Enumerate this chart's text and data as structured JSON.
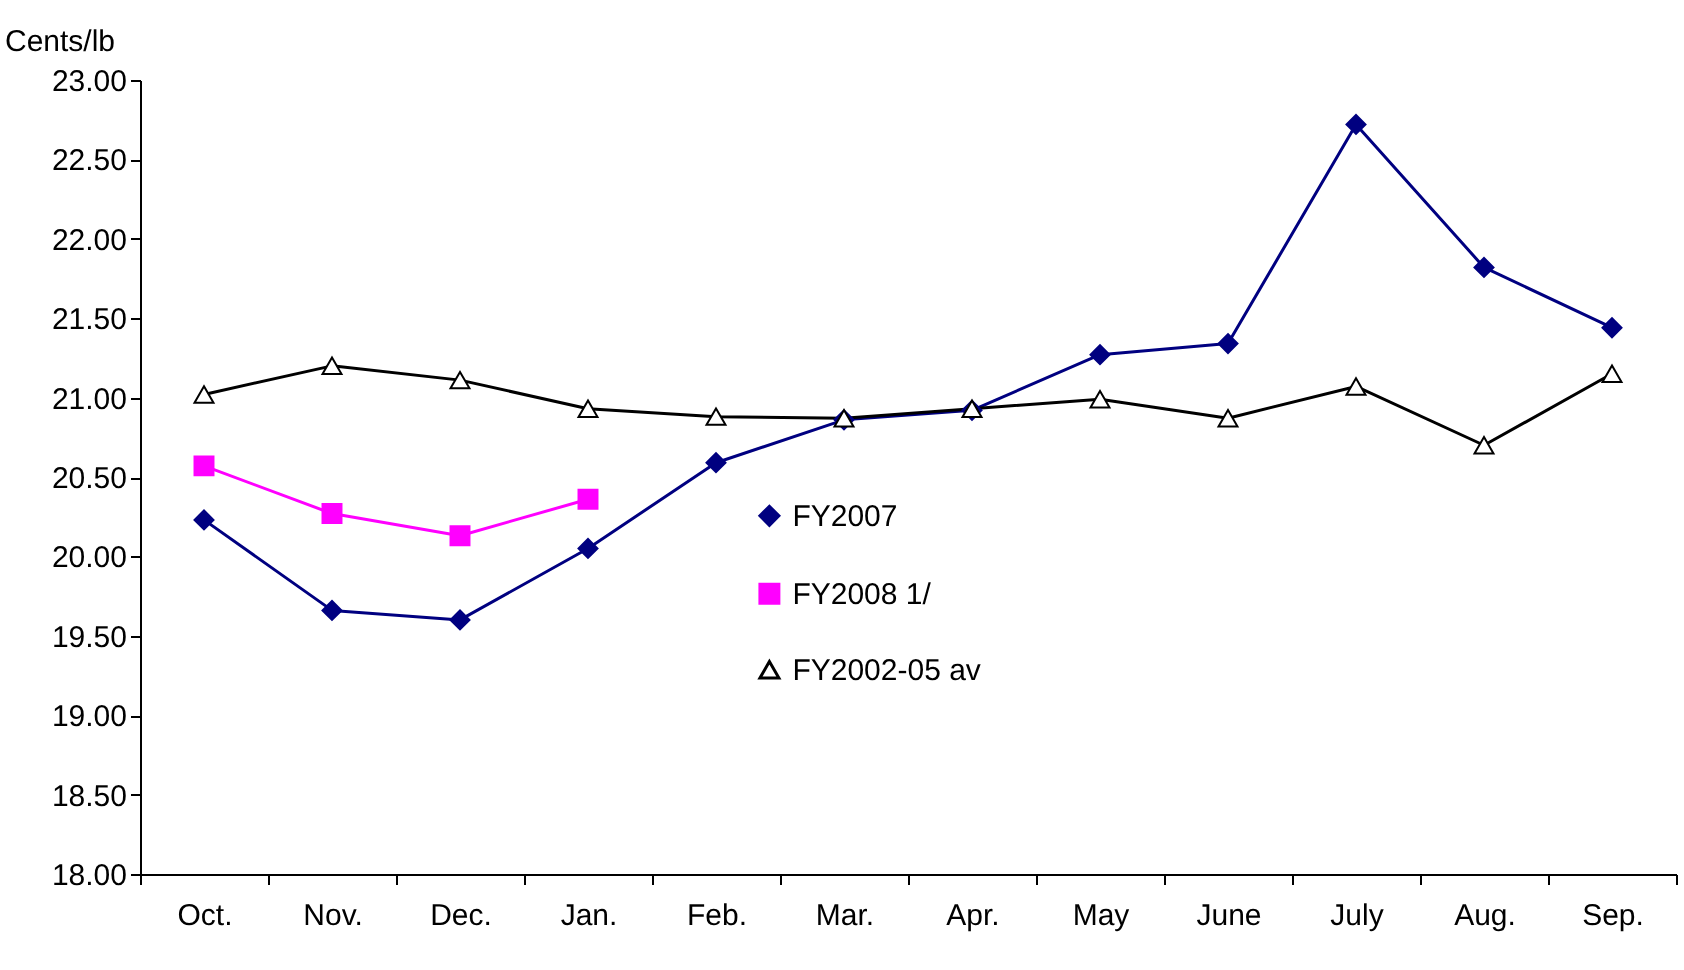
{
  "chart_data": {
    "type": "line",
    "ylabel": "Cents/lb",
    "categories": [
      "Oct.",
      "Nov.",
      "Dec.",
      "Jan.",
      "Feb.",
      "Mar.",
      "Apr.",
      "May",
      "June",
      "July",
      "Aug.",
      "Sep."
    ],
    "series": [
      {
        "name": "FY2007",
        "color": "#000080",
        "marker": "diamond",
        "values": [
          20.23,
          19.66,
          19.6,
          20.05,
          20.59,
          20.86,
          20.92,
          21.27,
          21.34,
          22.72,
          21.82,
          21.44
        ]
      },
      {
        "name": "FY2008 1/",
        "color": "#ff00ff",
        "marker": "square",
        "values": [
          20.57,
          20.27,
          20.13,
          20.36,
          null,
          null,
          null,
          null,
          null,
          null,
          null,
          null
        ]
      },
      {
        "name": "FY2002-05 av",
        "color": "#000000",
        "marker": "triangle",
        "values": [
          21.02,
          21.2,
          21.11,
          20.93,
          20.88,
          20.87,
          20.93,
          20.99,
          20.87,
          21.07,
          20.7,
          21.15
        ]
      }
    ],
    "ylim": [
      18,
      23
    ],
    "yticks": [
      {
        "value": 18,
        "label": "18.00"
      },
      {
        "value": 18.5,
        "label": "18.50"
      },
      {
        "value": 19,
        "label": "19.00"
      },
      {
        "value": 19.5,
        "label": "19.50"
      },
      {
        "value": 20,
        "label": "20.00"
      },
      {
        "value": 20.5,
        "label": "20.50"
      },
      {
        "value": 21,
        "label": "21.00"
      },
      {
        "value": 21.5,
        "label": "21.50"
      },
      {
        "value": 22,
        "label": "22.00"
      },
      {
        "value": 22.5,
        "label": "22.50"
      },
      {
        "value": 23,
        "label": "23.00"
      }
    ],
    "legend": "bottom",
    "grid": false
  }
}
